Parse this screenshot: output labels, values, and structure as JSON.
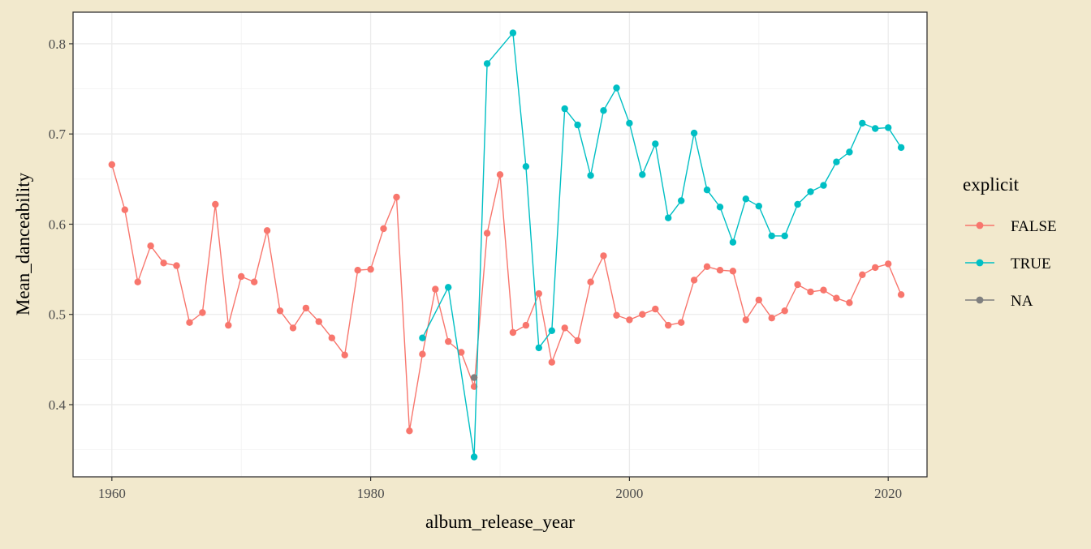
{
  "chart_data": {
    "type": "line",
    "title": "",
    "xlabel": "album_release_year",
    "ylabel": "Mean_danceability",
    "xlim": [
      1957,
      2023
    ],
    "ylim": [
      0.32,
      0.835
    ],
    "x_ticks": [
      1960,
      1980,
      2000,
      2020
    ],
    "y_ticks": [
      0.4,
      0.5,
      0.6,
      0.7,
      0.8
    ],
    "x_tick_labels": [
      "1960",
      "1980",
      "2000",
      "2020"
    ],
    "y_tick_labels": [
      "0.4",
      "0.5",
      "0.6",
      "0.7",
      "0.8"
    ],
    "grid": true,
    "legend": {
      "title": "explicit",
      "position": "right",
      "entries": [
        {
          "label": "FALSE",
          "color": "#F8766D"
        },
        {
          "label": "TRUE",
          "color": "#00BFC4"
        },
        {
          "label": "NA",
          "color": "#7F7F7F"
        }
      ]
    },
    "series": [
      {
        "name": "FALSE",
        "color": "#F8766D",
        "x": [
          1960,
          1961,
          1962,
          1963,
          1964,
          1965,
          1966,
          1967,
          1968,
          1969,
          1970,
          1971,
          1972,
          1973,
          1974,
          1975,
          1976,
          1977,
          1978,
          1979,
          1980,
          1981,
          1982,
          1983,
          1984,
          1985,
          1986,
          1987,
          1988,
          1989,
          1990,
          1991,
          1992,
          1993,
          1994,
          1995,
          1996,
          1997,
          1998,
          1999,
          2000,
          2001,
          2002,
          2003,
          2004,
          2005,
          2006,
          2007,
          2008,
          2009,
          2010,
          2011,
          2012,
          2013,
          2014,
          2015,
          2016,
          2017,
          2018,
          2019,
          2020,
          2021
        ],
        "y": [
          0.666,
          0.616,
          0.536,
          0.576,
          0.557,
          0.554,
          0.491,
          0.502,
          0.622,
          0.488,
          0.542,
          0.536,
          0.593,
          0.504,
          0.485,
          0.507,
          0.492,
          0.474,
          0.455,
          0.549,
          0.55,
          0.595,
          0.63,
          0.371,
          0.456,
          0.528,
          0.47,
          0.458,
          0.42,
          0.59,
          0.655,
          0.48,
          0.488,
          0.523,
          0.447,
          0.485,
          0.471,
          0.536,
          0.565,
          0.499,
          0.494,
          0.5,
          0.506,
          0.488,
          0.491,
          0.538,
          0.553,
          0.549,
          0.548,
          0.494,
          0.516,
          0.496,
          0.504,
          0.533,
          0.525,
          0.527,
          0.518,
          0.513,
          0.544,
          0.552,
          0.556,
          0.522
        ]
      },
      {
        "name": "TRUE",
        "color": "#00BFC4",
        "x": [
          1984,
          1986,
          1988,
          1989,
          1991,
          1992,
          1993,
          1994,
          1995,
          1996,
          1997,
          1998,
          1999,
          2000,
          2001,
          2002,
          2003,
          2004,
          2005,
          2006,
          2007,
          2008,
          2009,
          2010,
          2011,
          2012,
          2013,
          2014,
          2015,
          2016,
          2017,
          2018,
          2019,
          2020,
          2021
        ],
        "y": [
          0.474,
          0.53,
          0.342,
          0.778,
          0.812,
          0.664,
          0.463,
          0.482,
          0.728,
          0.71,
          0.654,
          0.726,
          0.751,
          0.712,
          0.655,
          0.689,
          0.607,
          0.626,
          0.701,
          0.638,
          0.619,
          0.58,
          0.628,
          0.62,
          0.587,
          0.587,
          0.622,
          0.636,
          0.643,
          0.669,
          0.68,
          0.712,
          0.706,
          0.707,
          0.685
        ]
      },
      {
        "name": "NA",
        "color": "#7F7F7F",
        "x": [
          1988
        ],
        "y": [
          0.43
        ]
      }
    ]
  }
}
